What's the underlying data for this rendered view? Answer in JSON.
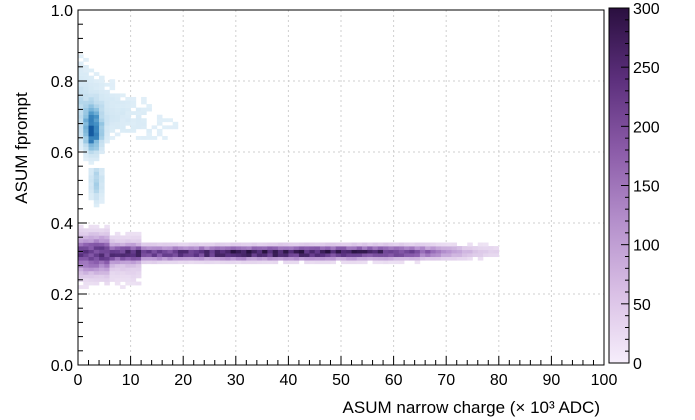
{
  "chart_data": {
    "type": "heatmap",
    "title": "",
    "xlabel": "ASUM narrow charge (× 10³ ADC)",
    "ylabel": "ASUM fprompt",
    "xlim": [
      0,
      100
    ],
    "ylim": [
      0.0,
      1.0
    ],
    "x_ticks": [
      "0",
      "10",
      "20",
      "30",
      "40",
      "50",
      "60",
      "70",
      "80",
      "90",
      "100"
    ],
    "y_ticks": [
      "0.0",
      "0.2",
      "0.4",
      "0.6",
      "0.8",
      "1.0"
    ],
    "grid": true,
    "colorbar": {
      "range": [
        0,
        300
      ],
      "ticks": [
        "0",
        "50",
        "100",
        "150",
        "200",
        "250",
        "300"
      ],
      "colormap": "white-to-dark-purple"
    },
    "populations": [
      {
        "label": "",
        "color_family": "blue",
        "x_range": [
          0,
          22
        ],
        "y_range": [
          0.55,
          0.92
        ],
        "peak": {
          "x": 2.5,
          "y": 0.65
        },
        "peak_counts": 300
      },
      {
        "label": "",
        "color_family": "purple",
        "x_range": [
          0,
          86
        ],
        "y_range": [
          0.22,
          0.42
        ],
        "peak": {
          "x": 35,
          "y": 0.315
        },
        "peak_counts": 250
      }
    ]
  }
}
